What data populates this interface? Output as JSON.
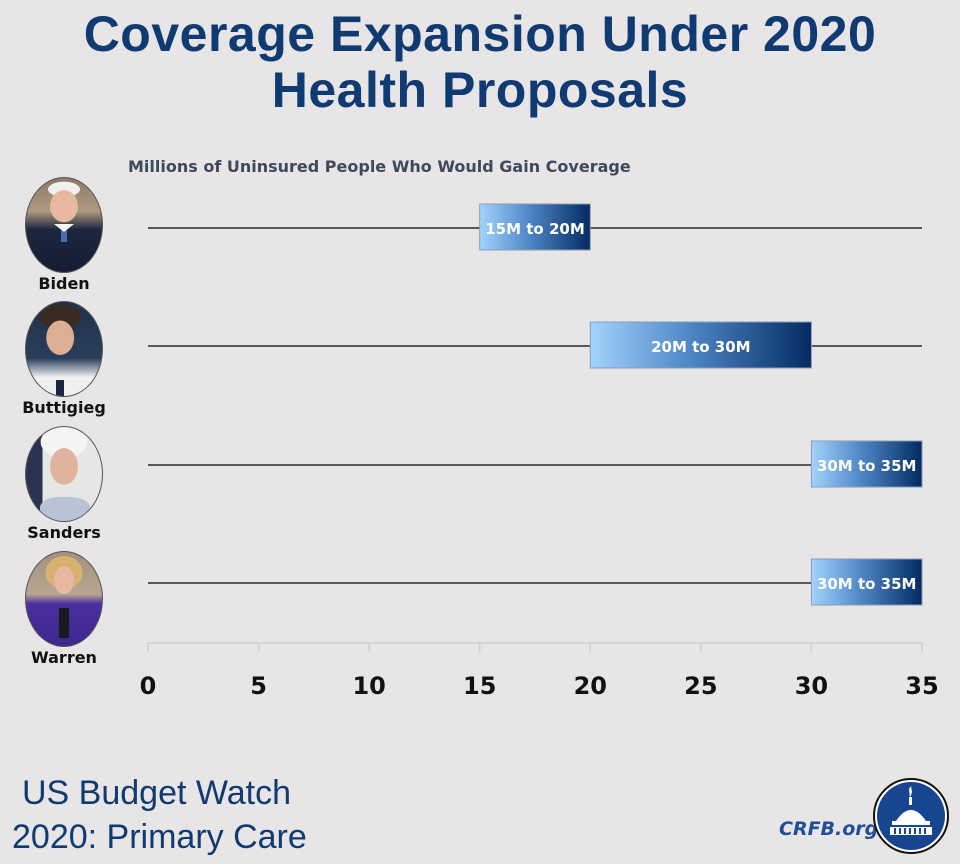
{
  "header": {
    "title_line1": "Coverage Expansion Under 2020",
    "title_line2": "Health Proposals"
  },
  "chart_data": {
    "type": "bar",
    "subtype": "floating-range-horizontal",
    "title": "Coverage Expansion Under 2020 Health Proposals",
    "subtitle": "Millions of Uninsured People Who Would Gain Coverage",
    "xlabel": "",
    "ylabel": "",
    "xlim": [
      0,
      35
    ],
    "xticks": [
      0,
      5,
      10,
      15,
      20,
      25,
      30,
      35
    ],
    "xtick_labels": [
      "0",
      "5",
      "10",
      "15",
      "20",
      "25",
      "30",
      "35"
    ],
    "grid": false,
    "categories": [
      "Biden",
      "Buttigieg",
      "Sanders",
      "Warren"
    ],
    "ranges": [
      {
        "name": "Biden",
        "low": 15,
        "high": 20,
        "label": "15M to 20M"
      },
      {
        "name": "Buttigieg",
        "low": 20,
        "high": 30,
        "label": "20M to 30M"
      },
      {
        "name": "Sanders",
        "low": 30,
        "high": 35,
        "label": "30M to 35M"
      },
      {
        "name": "Warren",
        "low": 30,
        "high": 35,
        "label": "30M to 35M"
      }
    ],
    "colors": {
      "bar_light": "#9fd0fb",
      "bar_dark": "#062f66",
      "line": "#5a5a5a",
      "axis": "#cfcfcf"
    }
  },
  "candidates": [
    {
      "name": "Biden",
      "photo": "biden-portrait"
    },
    {
      "name": "Buttigieg",
      "photo": "buttigieg-portrait"
    },
    {
      "name": "Sanders",
      "photo": "sanders-portrait"
    },
    {
      "name": "Warren",
      "photo": "warren-portrait"
    }
  ],
  "footer": {
    "line1": "US Budget Watch",
    "line2": "2020: Primary Care",
    "site": "CRFB.org",
    "logo_icon": "capitol-dome-icon"
  }
}
